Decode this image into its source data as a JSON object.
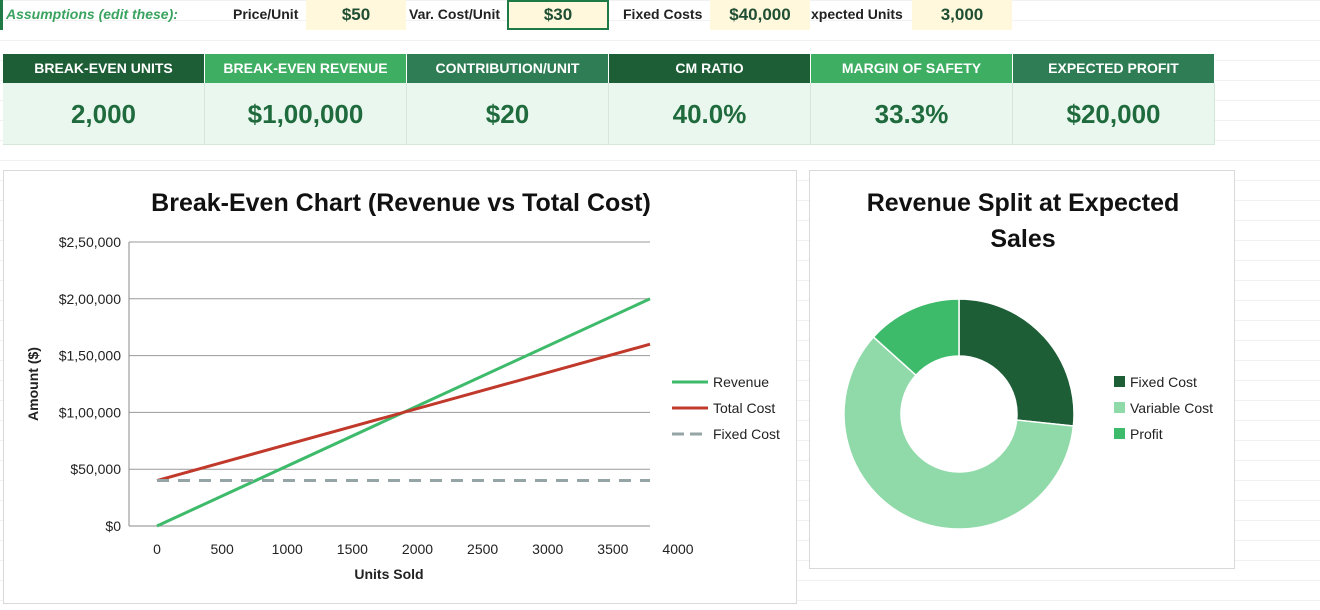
{
  "assumptions": {
    "label": "Assumptions (edit these):",
    "price_label": "Price/Unit",
    "price_value": "$50",
    "varcost_label": "Var. Cost/Unit",
    "varcost_value": "$30",
    "fixed_label": "Fixed Costs",
    "fixed_value": "$40,000",
    "expected_label": "xpected Units",
    "expected_value": "3,000"
  },
  "kpis": [
    {
      "label": "BREAK-EVEN UNITS",
      "value": "2,000",
      "color": "#1e5e37"
    },
    {
      "label": "BREAK-EVEN REVENUE",
      "value": "$1,00,000",
      "color": "#3dae62"
    },
    {
      "label": "CONTRIBUTION/UNIT",
      "value": "$20",
      "color": "#2f7d55"
    },
    {
      "label": "CM RATIO",
      "value": "40.0%",
      "color": "#1d5e36"
    },
    {
      "label": "MARGIN OF SAFETY",
      "value": "33.3%",
      "color": "#3dae62"
    },
    {
      "label": "EXPECTED PROFIT",
      "value": "$20,000",
      "color": "#2f7d55"
    }
  ],
  "chart_data": [
    {
      "type": "line",
      "title": "Break-Even Chart (Revenue vs Total Cost)",
      "xlabel": "Units Sold",
      "ylabel": "Amount ($)",
      "x_ticks": [
        "0",
        "500",
        "1000",
        "1500",
        "2000",
        "2500",
        "3000",
        "3500",
        "4000"
      ],
      "y_ticks": [
        "$0",
        "$50,000",
        "$1,00,000",
        "$1,50,000",
        "$2,00,000",
        "$2,50,000"
      ],
      "xlim": [
        0,
        4000
      ],
      "ylim": [
        0,
        250000
      ],
      "grid": true,
      "legend": "right",
      "series": [
        {
          "name": "Revenue",
          "color": "#3dba6a",
          "dash": false,
          "x": [
            0,
            4000
          ],
          "y": [
            0,
            200000
          ]
        },
        {
          "name": "Total Cost",
          "color": "#c0392b",
          "dash": false,
          "x": [
            0,
            4000
          ],
          "y": [
            40000,
            160000
          ]
        },
        {
          "name": "Fixed Cost",
          "color": "#95a5a6",
          "dash": true,
          "x": [
            0,
            4000
          ],
          "y": [
            40000,
            40000
          ]
        }
      ]
    },
    {
      "type": "pie",
      "title": "Revenue Split at Expected Sales",
      "title_lines": [
        "Revenue Split at Expected",
        "Sales"
      ],
      "legend": "right",
      "slices": [
        {
          "name": "Fixed Cost",
          "value": 40000,
          "color": "#1e5e37"
        },
        {
          "name": "Variable Cost",
          "value": 90000,
          "color": "#8fdaa8"
        },
        {
          "name": "Profit",
          "value": 20000,
          "color": "#3dba6a"
        }
      ]
    }
  ]
}
